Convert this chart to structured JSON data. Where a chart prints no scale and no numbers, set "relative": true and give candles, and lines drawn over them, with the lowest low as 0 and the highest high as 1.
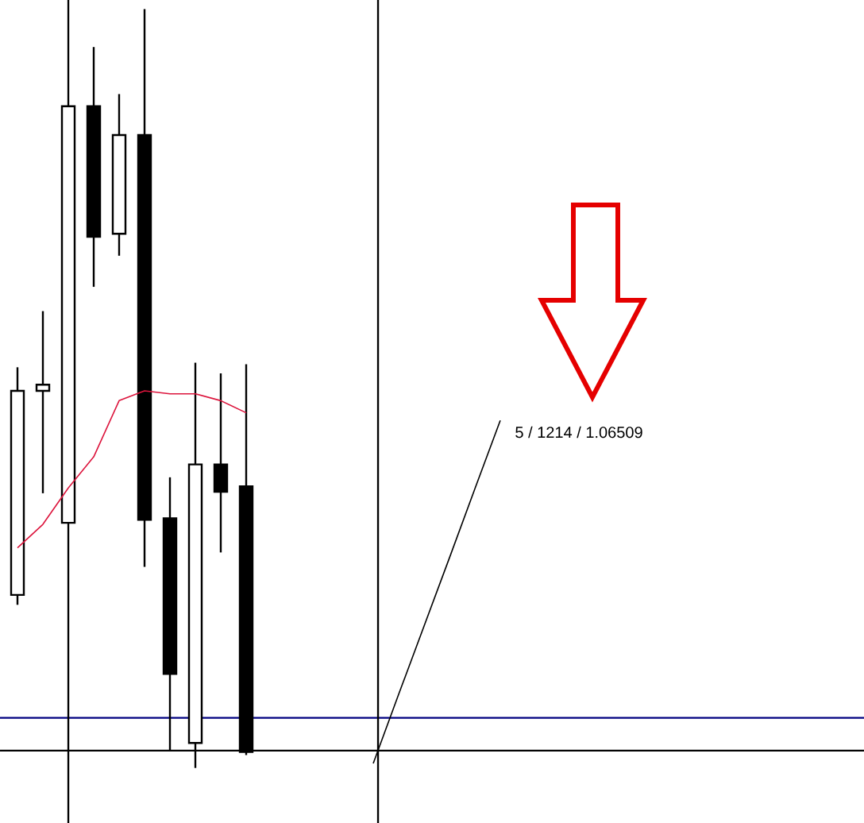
{
  "chart_data": {
    "type": "candlestick",
    "relative": true,
    "categories": [
      null,
      null,
      null,
      null,
      null,
      null,
      null,
      null,
      null,
      null,
      null,
      null,
      null,
      null,
      null,
      null,
      null,
      null,
      null,
      null,
      null,
      null,
      null,
      null,
      null,
      null,
      null,
      null,
      null,
      null,
      null,
      null,
      null,
      null
    ],
    "ohlc": [
      [
        0.228,
        0.528,
        0.215,
        0.497
      ],
      [
        0.497,
        0.602,
        0.362,
        0.505
      ],
      [
        0.323,
        0.872,
        0.323,
        0.872
      ],
      [
        0.872,
        0.95,
        0.634,
        0.7
      ],
      [
        0.704,
        0.888,
        0.675,
        0.834
      ],
      [
        0.834,
        1,
        0.265,
        0.327
      ],
      [
        0.329,
        0.383,
        0.023,
        0.124
      ],
      [
        0.033,
        0.534,
        0,
        0.4
      ],
      [
        0.4,
        0.52,
        0.284,
        0.364
      ],
      [
        0.371,
        0.532,
        0.017,
        0.021
      ],
      null,
      null,
      null,
      null,
      null,
      null,
      null,
      null,
      null,
      null,
      null,
      null,
      null,
      null,
      null,
      null,
      null,
      null,
      null,
      null,
      null,
      null,
      null,
      null
    ],
    "color": "#000000",
    "series": [
      {
        "type": "line",
        "color": "#dc143c",
        "values": [
          0.29,
          0.321,
          0.369,
          0.41,
          0.484,
          0.497,
          0.493,
          0.493,
          0.484,
          0.468,
          null,
          null,
          null,
          null,
          null,
          null,
          null,
          null,
          null,
          null,
          null,
          null,
          null,
          null,
          null,
          null,
          null,
          null,
          null,
          null,
          null,
          null,
          null,
          null
        ]
      },
      {
        "type": "line",
        "color": "#000000",
        "values": [
          null,
          null,
          null,
          null,
          null,
          null,
          null,
          null,
          null,
          null,
          null,
          null,
          null,
          null,
          0.006,
          0.097,
          0.187,
          0.277,
          0.368,
          0.458,
          null,
          null,
          null,
          null,
          null,
          null,
          null,
          null,
          null,
          null,
          null,
          null,
          null,
          null
        ]
      }
    ],
    "ref_lines": [
      {
        "axis": "y",
        "value": 0.066,
        "color": "#000080"
      },
      {
        "axis": "y",
        "value": 0.023,
        "color": "#000000"
      }
    ],
    "annotations": [
      "5 / 1214 / 1.06509"
    ]
  }
}
